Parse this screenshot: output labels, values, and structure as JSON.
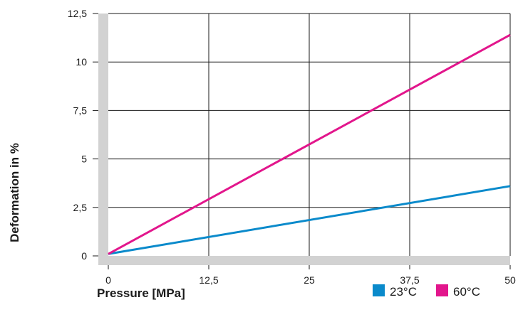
{
  "chart_data": {
    "type": "line",
    "title": "",
    "xlabel": "Pressure [MPa]",
    "ylabel": "Deformation in %",
    "xlim": [
      0,
      50
    ],
    "ylim": [
      0,
      12.5
    ],
    "x_ticks": [
      {
        "value": 0,
        "label": "0"
      },
      {
        "value": 12.5,
        "label": "12,5"
      },
      {
        "value": 25,
        "label": "25"
      },
      {
        "value": 37.5,
        "label": "37,5"
      },
      {
        "value": 50,
        "label": "50"
      }
    ],
    "y_ticks": [
      {
        "value": 0,
        "label": "0"
      },
      {
        "value": 2.5,
        "label": "2,5"
      },
      {
        "value": 5,
        "label": "5"
      },
      {
        "value": 7.5,
        "label": "7,5"
      },
      {
        "value": 10,
        "label": "10"
      },
      {
        "value": 12.5,
        "label": "12,5"
      }
    ],
    "grid": true,
    "legend_position": "bottom-right",
    "series": [
      {
        "name": "23°C",
        "color": "#0a8acb",
        "x": [
          0,
          50
        ],
        "y": [
          0.1,
          3.6
        ]
      },
      {
        "name": "60°C",
        "color": "#e2168c",
        "x": [
          0,
          50
        ],
        "y": [
          0.1,
          11.4
        ]
      }
    ],
    "colors": {
      "axis": "#d2d2d2",
      "grid": "#1a1a1a"
    }
  }
}
